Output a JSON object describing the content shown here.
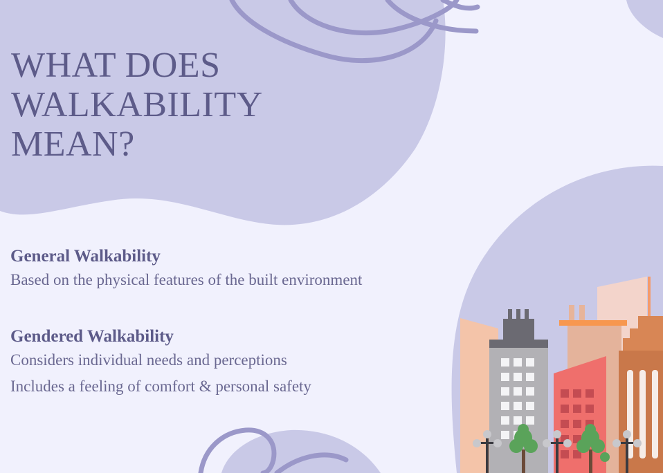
{
  "title": {
    "lines": [
      "WHAT DOES",
      "WALKABILITY",
      "MEAN?"
    ]
  },
  "sections": [
    {
      "heading": "General Walkability",
      "lines": [
        "Based on the physical features of the built environment"
      ]
    },
    {
      "heading": "Gendered Walkability",
      "lines": [
        "Considers individual needs and perceptions",
        "Includes a feeling of comfort & personal safety"
      ]
    }
  ],
  "colors": {
    "background": "#f1f1fd",
    "blob": "#c9c9e7",
    "scribble": "#9b98c9",
    "text": "#5d5b89"
  },
  "illustration": "city-skyline-with-trees-and-streetlamps"
}
